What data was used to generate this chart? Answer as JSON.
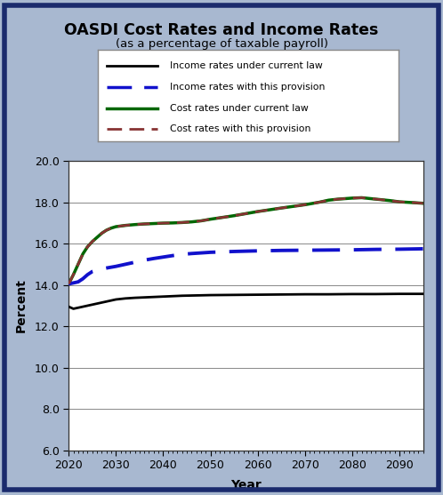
{
  "title": "OASDI Cost Rates and Income Rates",
  "subtitle": "(as a percentage of taxable payroll)",
  "xlabel": "Year",
  "ylabel": "Percent",
  "bg_color": "#a8b8d0",
  "plot_bg_color": "#ffffff",
  "border_color": "#1a2a6c",
  "ylim": [
    6.0,
    20.0
  ],
  "yticks": [
    6.0,
    8.0,
    10.0,
    12.0,
    14.0,
    16.0,
    18.0,
    20.0
  ],
  "xlim": [
    2020,
    2095
  ],
  "xticks": [
    2020,
    2030,
    2040,
    2050,
    2060,
    2070,
    2080,
    2090
  ],
  "income_current_law_x": [
    2020,
    2021,
    2022,
    2023,
    2024,
    2025,
    2026,
    2027,
    2028,
    2029,
    2030,
    2032,
    2034,
    2036,
    2038,
    2040,
    2042,
    2044,
    2046,
    2048,
    2050,
    2055,
    2060,
    2065,
    2070,
    2075,
    2080,
    2085,
    2090,
    2095
  ],
  "income_current_law_y": [
    12.95,
    12.85,
    12.9,
    12.95,
    13.0,
    13.05,
    13.1,
    13.15,
    13.2,
    13.25,
    13.3,
    13.35,
    13.38,
    13.4,
    13.42,
    13.44,
    13.46,
    13.48,
    13.49,
    13.5,
    13.51,
    13.52,
    13.53,
    13.54,
    13.55,
    13.55,
    13.56,
    13.56,
    13.57,
    13.57
  ],
  "income_provision_x": [
    2020,
    2021,
    2022,
    2023,
    2024,
    2025,
    2026,
    2027,
    2028,
    2029,
    2030,
    2032,
    2034,
    2036,
    2038,
    2040,
    2042,
    2044,
    2046,
    2048,
    2050,
    2055,
    2060,
    2065,
    2070,
    2075,
    2080,
    2085,
    2090,
    2095
  ],
  "income_provision_y": [
    14.05,
    14.1,
    14.15,
    14.3,
    14.5,
    14.65,
    14.72,
    14.78,
    14.82,
    14.86,
    14.9,
    15.0,
    15.1,
    15.2,
    15.28,
    15.35,
    15.42,
    15.48,
    15.52,
    15.55,
    15.58,
    15.62,
    15.65,
    15.67,
    15.68,
    15.69,
    15.7,
    15.72,
    15.73,
    15.75
  ],
  "cost_current_law_x": [
    2020,
    2021,
    2022,
    2023,
    2024,
    2025,
    2026,
    2027,
    2028,
    2029,
    2030,
    2032,
    2034,
    2036,
    2038,
    2040,
    2042,
    2044,
    2046,
    2048,
    2050,
    2055,
    2060,
    2065,
    2070,
    2073,
    2075,
    2077,
    2080,
    2082,
    2085,
    2088,
    2090,
    2093,
    2095
  ],
  "cost_current_law_y": [
    14.05,
    14.5,
    15.0,
    15.5,
    15.85,
    16.1,
    16.3,
    16.5,
    16.65,
    16.75,
    16.82,
    16.88,
    16.92,
    16.95,
    16.97,
    16.99,
    17.0,
    17.02,
    17.05,
    17.1,
    17.18,
    17.35,
    17.55,
    17.72,
    17.88,
    18.0,
    18.1,
    18.15,
    18.2,
    18.22,
    18.15,
    18.08,
    18.02,
    17.98,
    17.95
  ],
  "cost_provision_x": [
    2020,
    2021,
    2022,
    2023,
    2024,
    2025,
    2026,
    2027,
    2028,
    2029,
    2030,
    2032,
    2034,
    2036,
    2038,
    2040,
    2042,
    2044,
    2046,
    2048,
    2050,
    2055,
    2060,
    2065,
    2070,
    2073,
    2075,
    2077,
    2080,
    2082,
    2085,
    2088,
    2090,
    2093,
    2095
  ],
  "cost_provision_y": [
    14.05,
    14.5,
    15.0,
    15.5,
    15.85,
    16.1,
    16.3,
    16.5,
    16.65,
    16.75,
    16.82,
    16.88,
    16.92,
    16.95,
    16.97,
    16.99,
    17.0,
    17.02,
    17.05,
    17.1,
    17.18,
    17.35,
    17.55,
    17.72,
    17.88,
    18.0,
    18.1,
    18.15,
    18.2,
    18.22,
    18.15,
    18.08,
    18.02,
    17.98,
    17.95
  ],
  "income_current_law_color": "#000000",
  "income_provision_color": "#1111cc",
  "cost_current_law_color": "#006600",
  "cost_provision_color": "#883333",
  "legend_labels": [
    "Income rates under current law",
    "Income rates with this provision",
    "Cost rates under current law",
    "Cost rates with this provision"
  ]
}
